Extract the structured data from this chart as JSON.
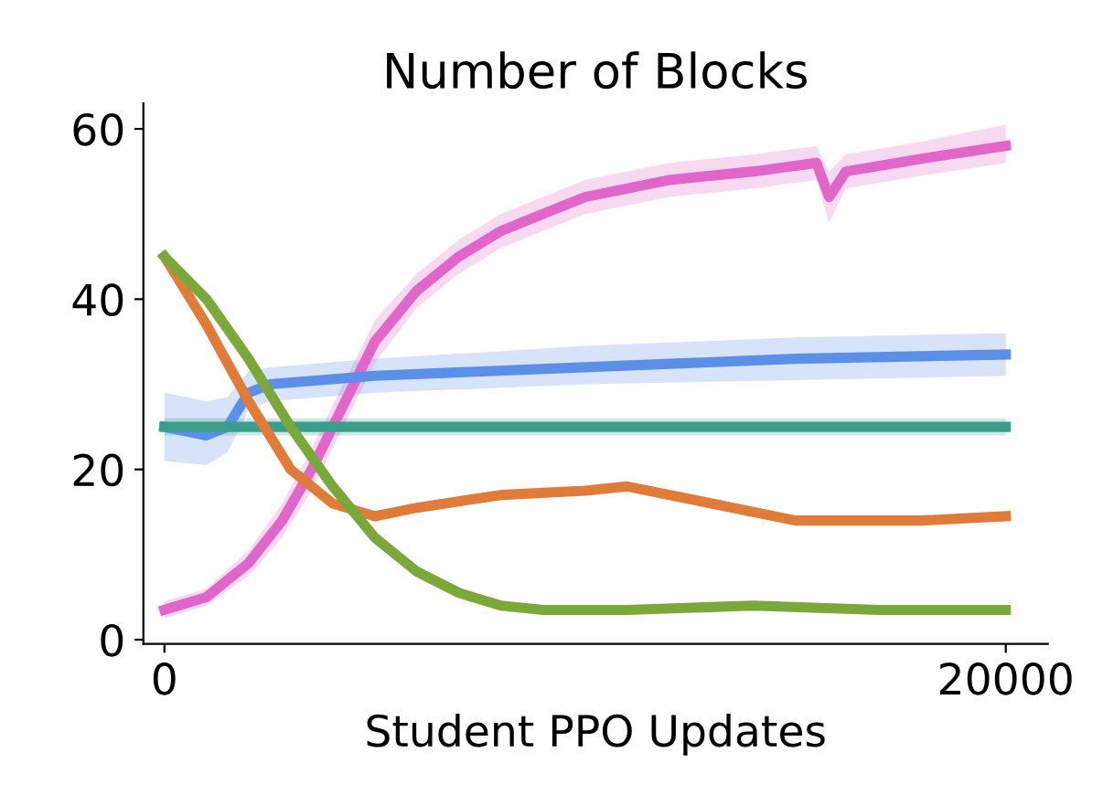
{
  "chart_data": {
    "type": "line",
    "title": "Number of Blocks",
    "xlabel": "Student PPO Updates",
    "xlim": [
      -500,
      21000
    ],
    "ylim": [
      -0.5,
      63
    ],
    "xticks": [
      0,
      20000
    ],
    "yticks": [
      0,
      20,
      40,
      60
    ],
    "grid": false,
    "legend": false,
    "marker": "none",
    "line_style": "solid",
    "series": [
      {
        "color": "#e066c9",
        "x": [
          0,
          1000,
          2000,
          2800,
          3500,
          4000,
          4500,
          5000,
          6000,
          7000,
          8000,
          9000,
          10000,
          12000,
          14000,
          15500,
          15800,
          16200,
          18000,
          20000
        ],
        "values": [
          3.5,
          5,
          9,
          14,
          20,
          25,
          30,
          35,
          41,
          45,
          48,
          50,
          52,
          54,
          55,
          56,
          52,
          55,
          56.5,
          58
        ],
        "lower": [
          2.5,
          4,
          7.5,
          12,
          17.5,
          22.5,
          27.5,
          32.5,
          39,
          43,
          46,
          48,
          50,
          52,
          53,
          54,
          49,
          53,
          54.5,
          56
        ],
        "upper": [
          4.5,
          6,
          10.5,
          16,
          22.5,
          27.5,
          32.5,
          37.5,
          43,
          47,
          50,
          52,
          54,
          56,
          57,
          58,
          55,
          57,
          58.5,
          60.5
        ]
      },
      {
        "color": "#5b8fe8",
        "x": [
          0,
          1000,
          1500,
          2000,
          2500,
          5000,
          10000,
          15000,
          20000
        ],
        "values": [
          25,
          24,
          25,
          29,
          30,
          31,
          32,
          33,
          33.5
        ],
        "lower": [
          21,
          20.5,
          22,
          27,
          28,
          29,
          30,
          30.5,
          31
        ],
        "upper": [
          29,
          28,
          28.5,
          31.5,
          32,
          33,
          34.5,
          35.5,
          36
        ]
      },
      {
        "color": "#3a9e8a",
        "x": [
          0,
          5000,
          10000,
          15000,
          20000
        ],
        "values": [
          25,
          25,
          25,
          25,
          25
        ],
        "lower": [
          24,
          24,
          24,
          24,
          24
        ],
        "upper": [
          26,
          26,
          26,
          26,
          26
        ]
      },
      {
        "color": "#e07b39",
        "x": [
          0,
          1000,
          2000,
          3000,
          4000,
          5000,
          6000,
          8000,
          10000,
          11000,
          12500,
          15000,
          18000,
          20000
        ],
        "values": [
          45,
          37,
          28,
          20,
          16,
          14.5,
          15.5,
          17,
          17.5,
          18,
          16.5,
          14,
          14,
          14.5
        ]
      },
      {
        "color": "#7aa83a",
        "x": [
          0,
          1000,
          2000,
          3000,
          4000,
          5000,
          6000,
          7000,
          8000,
          9000,
          11000,
          14000,
          17000,
          20000
        ],
        "values": [
          45,
          40,
          33,
          25,
          18,
          12,
          8,
          5.5,
          4,
          3.5,
          3.5,
          4,
          3.5,
          3.5
        ]
      }
    ]
  }
}
